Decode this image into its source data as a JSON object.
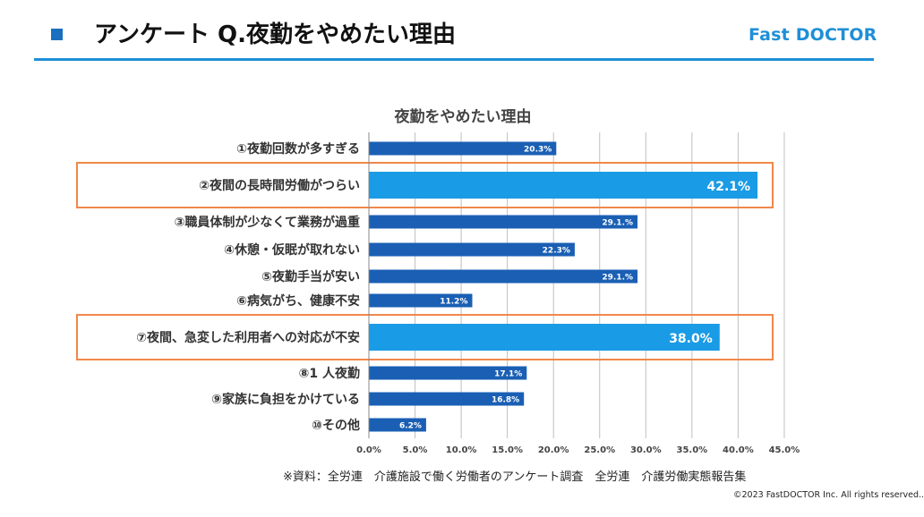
{
  "header": {
    "title": "アンケート Q.夜勤をやめたい理由",
    "logo": "Fast DOCTOR"
  },
  "colors": {
    "accent": "#1f8fd6",
    "bar_normal": "#1a5fb4",
    "bar_highlight": "#1a9be6",
    "highlight_box": "#f0884a",
    "grid": "#bfbfbf"
  },
  "chart_data": {
    "type": "bar",
    "orientation": "horizontal",
    "title": "夜勤をやめたい理由",
    "categories": [
      "①夜勤回数が多すぎる",
      "②夜間の長時間労働がつらい",
      "③職員体制が少なくて業務が過重",
      "④休憩・仮眠が取れない",
      "⑤夜勤手当が安い",
      "⑥病気がち、健康不安",
      "⑦夜間、急変した利用者への対応が不安",
      "⑧1 人夜勤",
      "⑨家族に負担をかけている",
      "⑩その他"
    ],
    "values": [
      20.3,
      42.1,
      29.1,
      22.3,
      29.1,
      11.2,
      38.0,
      17.1,
      16.8,
      6.2
    ],
    "data_labels": [
      "20.3%",
      "42.1%",
      "29.1.%",
      "22.3%",
      "29.1.%",
      "11.2%",
      "38.0%",
      "17.1%",
      "16.8%",
      "6.2%"
    ],
    "highlighted": [
      1,
      6
    ],
    "xlim": [
      0,
      45
    ],
    "xticks": [
      "0.0%",
      "5.0%",
      "10.0%",
      "15.0%",
      "20.0%",
      "25.0%",
      "30.0%",
      "35.0%",
      "40.0%",
      "45.0%"
    ],
    "grid": "vertical"
  },
  "footer": {
    "source": "※資料：全労連　介護施設で働く労働者のアンケート調査　全労連　介護労働実態報告集",
    "copyright": "©2023 FastDOCTOR Inc. All rights reserved.."
  }
}
